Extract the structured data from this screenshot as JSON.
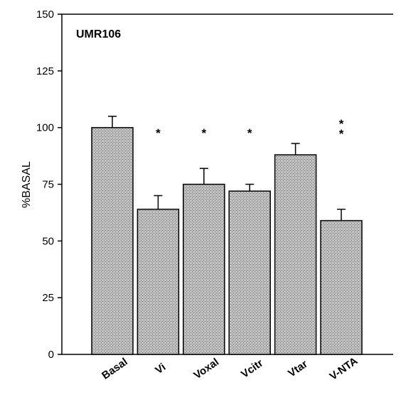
{
  "chart_data": {
    "type": "bar",
    "panel_label": "UMR106",
    "title": "",
    "xlabel": "",
    "ylabel": "%BASAL",
    "ylim": [
      0,
      150
    ],
    "yticks": [
      0,
      25,
      50,
      75,
      100,
      125,
      150
    ],
    "categories": [
      "Basal",
      "Vi",
      "Voxal",
      "Vcitr",
      "Vtar",
      "V-NTA"
    ],
    "values": [
      100,
      64,
      75,
      72,
      88,
      59
    ],
    "errors": [
      5,
      6,
      7,
      3,
      5,
      5
    ],
    "significance": [
      "",
      "*",
      "*",
      "*",
      "",
      "**"
    ],
    "bar_color": "#b3b3b3",
    "grid": false,
    "legend": "none"
  }
}
